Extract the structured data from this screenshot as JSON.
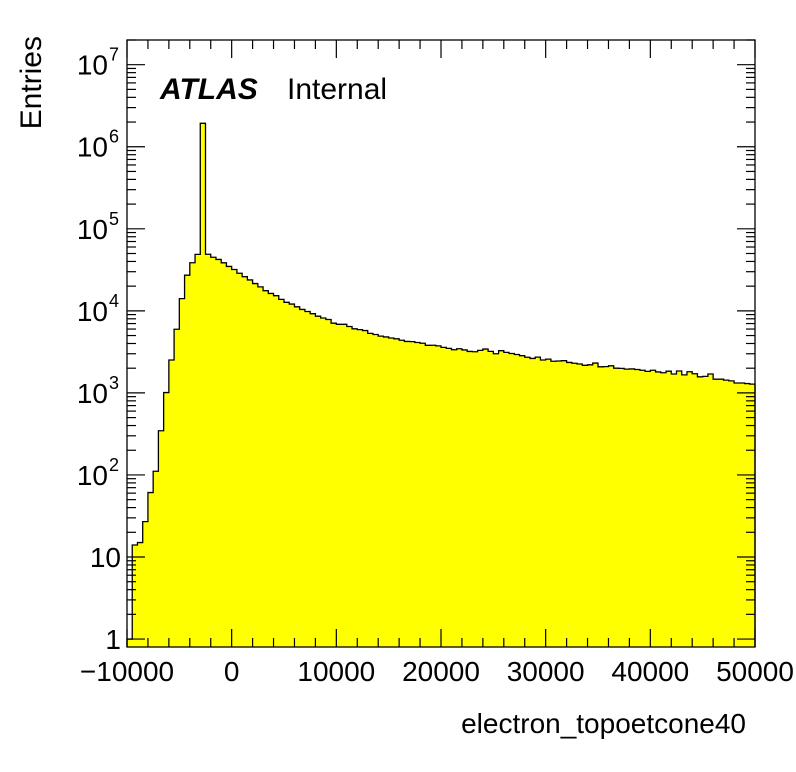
{
  "chart_data": {
    "type": "histogram",
    "y_scale": "log",
    "xlim": [
      -10000,
      50000
    ],
    "ylim": [
      0.8,
      20000000
    ],
    "xlabel": "electron_topoetcone40",
    "ylabel": "Entries",
    "fill_color": "#ffff00",
    "line_color": "#000000",
    "grid": false,
    "legend": "none",
    "label": {
      "experiment": "ATLAS",
      "status": "Internal"
    },
    "x_ticks": [
      {
        "value": -10000,
        "label": "−10000"
      },
      {
        "value": 0,
        "label": "0"
      },
      {
        "value": 10000,
        "label": "10000"
      },
      {
        "value": 20000,
        "label": "20000"
      },
      {
        "value": 30000,
        "label": "30000"
      },
      {
        "value": 40000,
        "label": "40000"
      },
      {
        "value": 50000,
        "label": "50000"
      }
    ],
    "y_ticks": [
      {
        "value": 1,
        "base": "1",
        "exp": ""
      },
      {
        "value": 10,
        "base": "10",
        "exp": ""
      },
      {
        "value": 100,
        "base": "10",
        "exp": "2"
      },
      {
        "value": 1000,
        "base": "10",
        "exp": "3"
      },
      {
        "value": 10000,
        "base": "10",
        "exp": "4"
      },
      {
        "value": 100000,
        "base": "10",
        "exp": "5"
      },
      {
        "value": 1000000,
        "base": "10",
        "exp": "6"
      },
      {
        "value": 10000000,
        "base": "10",
        "exp": "7"
      }
    ],
    "bin_edges_start": -10000,
    "bin_width": 500,
    "bin_values": [
      1,
      14,
      15,
      27,
      61,
      111,
      346,
      1009,
      2520,
      5970,
      14100,
      27200,
      38600,
      48800,
      1930000,
      49000,
      45000,
      42300,
      38500,
      34800,
      31900,
      28700,
      26100,
      23800,
      21500,
      19600,
      17600,
      16300,
      15300,
      13800,
      12700,
      12100,
      11200,
      10400,
      9820,
      9230,
      8610,
      8180,
      7840,
      7070,
      6850,
      6850,
      6440,
      6040,
      5910,
      5750,
      5320,
      5150,
      4920,
      4810,
      4670,
      4560,
      4380,
      4240,
      4220,
      4110,
      4030,
      3800,
      3810,
      3740,
      3590,
      3490,
      3360,
      3450,
      3340,
      3200,
      3170,
      3300,
      3420,
      3210,
      3000,
      3270,
      3120,
      3020,
      2940,
      2840,
      2720,
      2630,
      2730,
      2520,
      2580,
      2430,
      2450,
      2470,
      2350,
      2300,
      2250,
      2170,
      2200,
      2310,
      2080,
      2090,
      2140,
      2000,
      1990,
      1950,
      1960,
      1930,
      1890,
      1830,
      1890,
      1800,
      1760,
      1840,
      1700,
      1850,
      1660,
      1810,
      1710,
      1570,
      1590,
      1700,
      1470,
      1470,
      1430,
      1400,
      1320,
      1320,
      1300,
      1280
    ]
  }
}
